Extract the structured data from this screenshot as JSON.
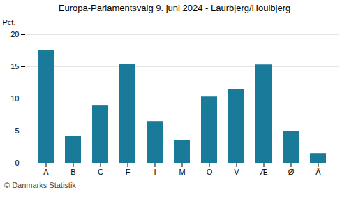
{
  "chart_data": {
    "type": "bar",
    "title": "Europa-Parlamentsvalg 9. juni 2024 - Laurbjerg/Houlbjerg",
    "ylabel": "Pct.",
    "caption": "© Danmarks Statistik",
    "categories": [
      "A",
      "B",
      "C",
      "F",
      "I",
      "M",
      "O",
      "V",
      "Æ",
      "Ø",
      "Å"
    ],
    "values": [
      17.6,
      4.2,
      8.9,
      15.4,
      6.5,
      3.5,
      10.3,
      11.5,
      15.3,
      5.0,
      1.5
    ],
    "color": "#1a7a99",
    "ylim": [
      0,
      20
    ],
    "yticks": [
      0,
      5,
      10,
      15,
      20
    ],
    "grid": true
  }
}
